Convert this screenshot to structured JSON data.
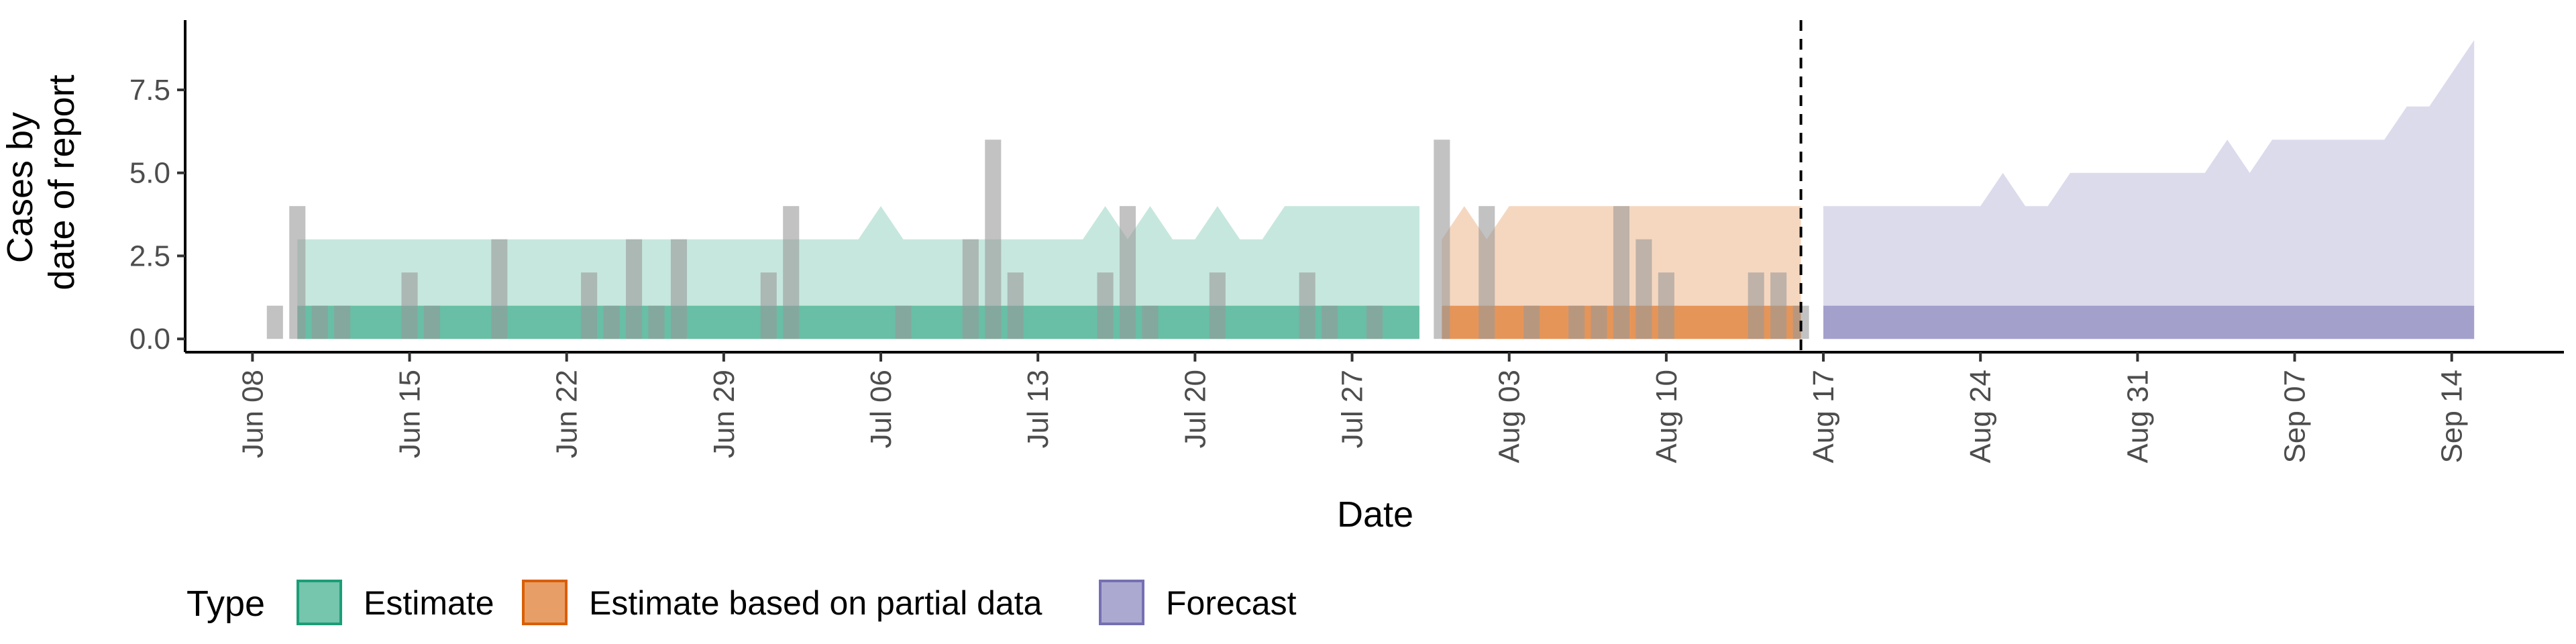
{
  "chart_data": {
    "type": "area",
    "xlabel": "Date",
    "ylabel": "Cases by\ndate of report",
    "ylim": [
      -0.4,
      9.6
    ],
    "yticks": [
      0.0,
      2.5,
      5.0,
      7.5
    ],
    "ytick_labels": [
      "0.0",
      "2.5",
      "5.0",
      "7.5"
    ],
    "xticks": [
      "2020-06-08",
      "2020-06-15",
      "2020-06-22",
      "2020-06-29",
      "2020-07-06",
      "2020-07-13",
      "2020-07-20",
      "2020-07-27",
      "2020-08-03",
      "2020-08-10",
      "2020-08-17",
      "2020-08-24",
      "2020-08-31",
      "2020-09-07",
      "2020-09-14"
    ],
    "xtick_labels": [
      "Jun 08",
      "Jun 15",
      "Jun 22",
      "Jun 29",
      "Jul 06",
      "Jul 13",
      "Jul 20",
      "Jul 27",
      "Aug 03",
      "Aug 10",
      "Aug 17",
      "Aug 24",
      "Aug 31",
      "Sep 07",
      "Sep 14"
    ],
    "xlim": [
      "2020-06-05",
      "2020-09-19"
    ],
    "forecast_line_date": "2020-08-16",
    "legend": {
      "title": "Type",
      "position": "bottom-left",
      "entries": [
        {
          "label": "Estimate",
          "color": "#1b9e77"
        },
        {
          "label": "Estimate based on partial data",
          "color": "#d95f02"
        },
        {
          "label": "Forecast",
          "color": "#7570b3"
        }
      ]
    },
    "observed_cases": {
      "color": "#999999",
      "dates": [
        "2020-06-09",
        "2020-06-10",
        "2020-06-11",
        "2020-06-12",
        "2020-06-13",
        "2020-06-14",
        "2020-06-15",
        "2020-06-16",
        "2020-06-17",
        "2020-06-18",
        "2020-06-19",
        "2020-06-20",
        "2020-06-21",
        "2020-06-22",
        "2020-06-23",
        "2020-06-24",
        "2020-06-25",
        "2020-06-26",
        "2020-06-27",
        "2020-06-28",
        "2020-06-29",
        "2020-06-30",
        "2020-07-01",
        "2020-07-02",
        "2020-07-03",
        "2020-07-04",
        "2020-07-05",
        "2020-07-06",
        "2020-07-07",
        "2020-07-08",
        "2020-07-09",
        "2020-07-10",
        "2020-07-11",
        "2020-07-12",
        "2020-07-13",
        "2020-07-14",
        "2020-07-15",
        "2020-07-16",
        "2020-07-17",
        "2020-07-18",
        "2020-07-19",
        "2020-07-20",
        "2020-07-21",
        "2020-07-22",
        "2020-07-23",
        "2020-07-24",
        "2020-07-25",
        "2020-07-26",
        "2020-07-27",
        "2020-07-28",
        "2020-07-29",
        "2020-07-30",
        "2020-07-31",
        "2020-08-01",
        "2020-08-02",
        "2020-08-03",
        "2020-08-04",
        "2020-08-05",
        "2020-08-06",
        "2020-08-07",
        "2020-08-08",
        "2020-08-09",
        "2020-08-10",
        "2020-08-11",
        "2020-08-12",
        "2020-08-13",
        "2020-08-14",
        "2020-08-15",
        "2020-08-16"
      ],
      "values": [
        1,
        4,
        1,
        1,
        0,
        0,
        2,
        1,
        0,
        0,
        3,
        0,
        0,
        0,
        2,
        1,
        3,
        1,
        3,
        0,
        0,
        0,
        2,
        4,
        0,
        0,
        0,
        0,
        1,
        0,
        0,
        3,
        6,
        2,
        0,
        0,
        0,
        2,
        4,
        1,
        0,
        0,
        2,
        0,
        0,
        0,
        2,
        1,
        0,
        1,
        0,
        0,
        6,
        0,
        4,
        0,
        1,
        0,
        1,
        1,
        4,
        3,
        2,
        0,
        0,
        0,
        2,
        2,
        1
      ]
    },
    "series": [
      {
        "name": "Estimate",
        "color": "#1b9e77",
        "dates": [
          "2020-06-10",
          "2020-07-05",
          "2020-07-06",
          "2020-07-07",
          "2020-07-15",
          "2020-07-16",
          "2020-07-17",
          "2020-07-18",
          "2020-07-19",
          "2020-07-20",
          "2020-07-21",
          "2020-07-22",
          "2020-07-23",
          "2020-07-24",
          "2020-07-25",
          "2020-07-30"
        ],
        "upper_outer": [
          3,
          3,
          4,
          3,
          3,
          4,
          3,
          4,
          3,
          3,
          4,
          3,
          3,
          4,
          4,
          4
        ],
        "upper_inner": [
          1,
          1,
          1,
          1,
          1,
          1,
          1,
          1,
          1,
          1,
          1,
          1,
          1,
          1,
          1,
          1
        ],
        "lower": [
          0,
          0,
          0,
          0,
          0,
          0,
          0,
          0,
          0,
          0,
          0,
          0,
          0,
          0,
          0,
          0
        ]
      },
      {
        "name": "Estimate based on partial data",
        "color": "#d95f02",
        "dates": [
          "2020-07-31",
          "2020-08-01",
          "2020-08-02",
          "2020-08-03",
          "2020-08-16"
        ],
        "upper_outer": [
          3,
          4,
          3,
          4,
          4
        ],
        "upper_inner": [
          1,
          1,
          1,
          1,
          1
        ],
        "lower": [
          0,
          0,
          0,
          0,
          0
        ]
      },
      {
        "name": "Forecast",
        "color": "#7570b3",
        "dates": [
          "2020-08-17",
          "2020-08-24",
          "2020-08-25",
          "2020-08-26",
          "2020-08-27",
          "2020-08-28",
          "2020-09-03",
          "2020-09-04",
          "2020-09-05",
          "2020-09-06",
          "2020-09-11",
          "2020-09-12",
          "2020-09-13",
          "2020-09-15"
        ],
        "upper_outer": [
          4,
          4,
          5,
          4,
          4,
          5,
          5,
          6,
          5,
          6,
          6,
          7,
          7,
          9
        ],
        "upper_inner": [
          1,
          1,
          1,
          1,
          1,
          1,
          1,
          1,
          1,
          1,
          1,
          1,
          1,
          1
        ],
        "lower": [
          0,
          0,
          0,
          0,
          0,
          0,
          0,
          0,
          0,
          0,
          0,
          0,
          0,
          0
        ]
      }
    ]
  }
}
